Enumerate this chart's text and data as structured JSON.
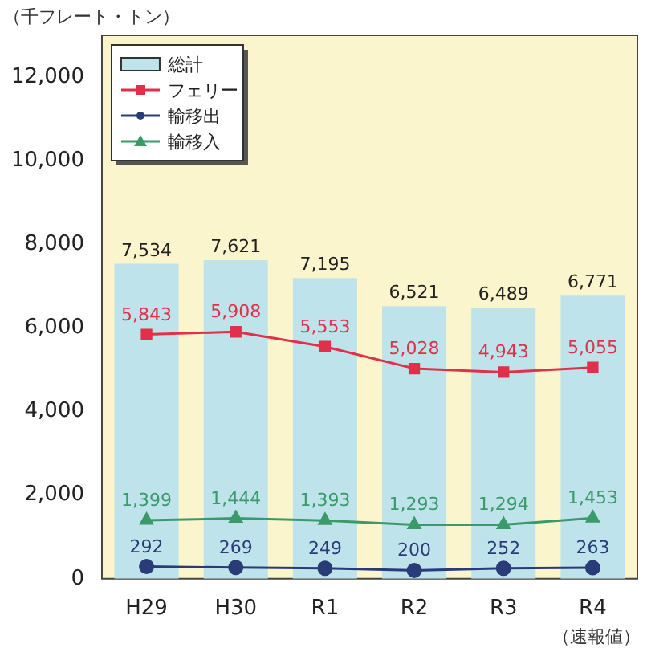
{
  "chart_data": {
    "type": "bar",
    "ylabel": "（千フレート・トン）",
    "annotations": [
      "（速報値）"
    ],
    "categories": [
      "H29",
      "H30",
      "R1",
      "R2",
      "R3",
      "R4"
    ],
    "ylim": [
      0,
      13000
    ],
    "yticks": [
      0,
      {
        "value": 2000,
        "label": "2,000"
      },
      {
        "value": 4000,
        "label": "4,000"
      },
      {
        "value": 6000,
        "label": "6,000"
      },
      {
        "value": 8000,
        "label": "8,000"
      },
      {
        "value": 10000,
        "label": "10,000"
      },
      {
        "value": 12000,
        "label": "12,000"
      }
    ],
    "grid": false,
    "legend": "top left",
    "data_labels": true,
    "series": [
      {
        "name": "総計",
        "color": "#bfe3ea",
        "values": [
          7534,
          7621,
          7195,
          6521,
          6489,
          6771
        ],
        "value_labels": [
          "7,534",
          "7,621",
          "7,195",
          "6,521",
          "6,489",
          "6,771"
        ]
      },
      {
        "name": "フェリー",
        "type": "line",
        "marker": "square",
        "color": "#e0304a",
        "values": [
          5843,
          5908,
          5553,
          5028,
          4943,
          5055
        ],
        "value_labels": [
          "5,843",
          "5,908",
          "5,553",
          "5,028",
          "4,943",
          "5,055"
        ]
      },
      {
        "name": "輸移出",
        "type": "line",
        "marker": "circle",
        "color": "#2a3c78",
        "values": [
          292,
          269,
          249,
          200,
          252,
          263
        ],
        "value_labels": [
          "292",
          "269",
          "249",
          "200",
          "252",
          "263"
        ]
      },
      {
        "name": "輸移入",
        "type": "line",
        "marker": "triangle",
        "color": "#3a9a6a",
        "values": [
          1399,
          1444,
          1393,
          1293,
          1294,
          1453
        ],
        "value_labels": [
          "1,399",
          "1,444",
          "1,393",
          "1,293",
          "1,294",
          "1,453"
        ]
      }
    ]
  }
}
